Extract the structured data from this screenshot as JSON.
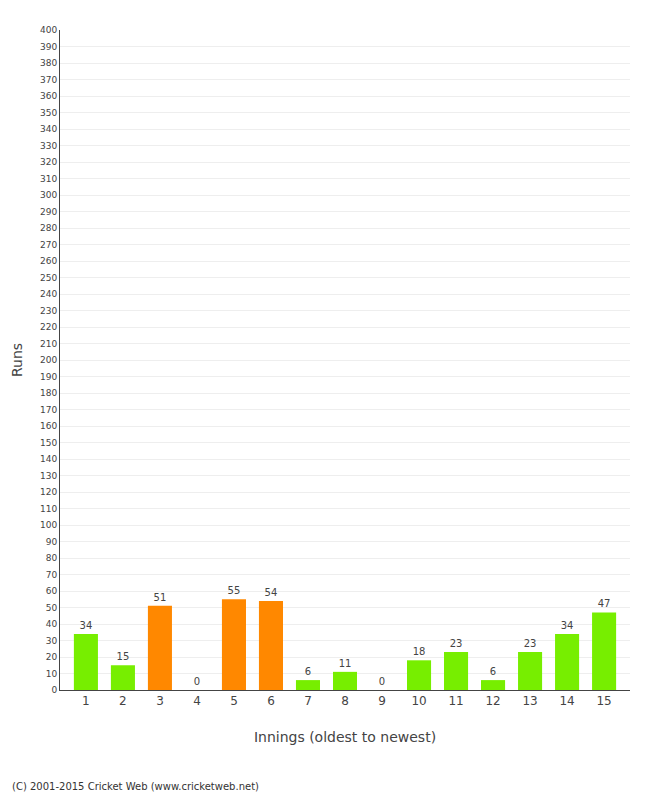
{
  "chart_data": {
    "type": "bar",
    "x": [
      1,
      2,
      3,
      4,
      5,
      6,
      7,
      8,
      9,
      10,
      11,
      12,
      13,
      14,
      15
    ],
    "values": [
      34,
      15,
      51,
      0,
      55,
      54,
      6,
      11,
      0,
      18,
      23,
      6,
      23,
      34,
      47
    ],
    "colors": [
      "#77ee00",
      "#77ee00",
      "#ff8800",
      "#77ee00",
      "#ff8800",
      "#ff8800",
      "#77ee00",
      "#77ee00",
      "#77ee00",
      "#77ee00",
      "#77ee00",
      "#77ee00",
      "#77ee00",
      "#77ee00",
      "#77ee00"
    ],
    "xlabel": "Innings (oldest to newest)",
    "ylabel": "Runs",
    "xlim": [
      0.3,
      15.7
    ],
    "xticks": [
      1,
      2,
      3,
      4,
      5,
      6,
      7,
      8,
      9,
      10,
      11,
      12,
      13,
      14,
      15
    ],
    "ylim": [
      0,
      400
    ],
    "yticks": [
      0,
      10,
      20,
      30,
      40,
      50,
      60,
      70,
      80,
      90,
      100,
      110,
      120,
      130,
      140,
      150,
      160,
      170,
      180,
      190,
      200,
      210,
      220,
      230,
      240,
      250,
      260,
      270,
      280,
      290,
      300,
      310,
      320,
      330,
      340,
      350,
      360,
      370,
      380,
      390,
      400
    ],
    "grid": true,
    "data_labels": true,
    "annotations": [
      "(C) 2001-2015 Cricket Web (www.cricketweb.net)"
    ]
  }
}
